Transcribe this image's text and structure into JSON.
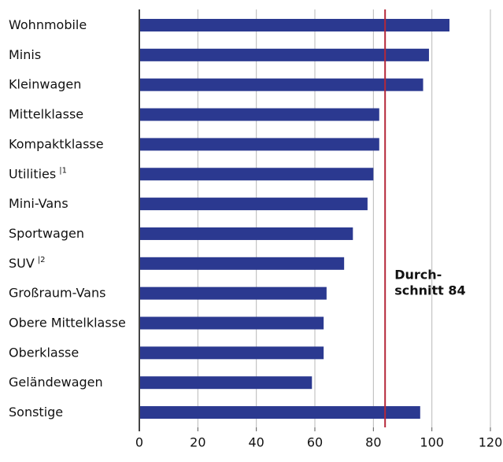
{
  "chart_data": {
    "type": "bar",
    "orientation": "horizontal",
    "categories": [
      "Wohnmobile",
      "Minis",
      "Kleinwagen",
      "Mittelklasse",
      "Kompaktklasse",
      "Utilities",
      "Mini-Vans",
      "Sportwagen",
      "SUV",
      "Großraum-Vans",
      "Obere Mittelklasse",
      "Oberklasse",
      "Geländewagen",
      "Sonstige"
    ],
    "footnotes": [
      null,
      null,
      null,
      null,
      null,
      "|1",
      null,
      null,
      "|2",
      null,
      null,
      null,
      null,
      null
    ],
    "values": [
      106,
      99,
      97,
      82,
      82,
      80,
      78,
      73,
      70,
      64,
      63,
      63,
      59,
      96
    ],
    "color": "#2b3990",
    "xlim": [
      0,
      120
    ],
    "xticks": [
      0,
      20,
      40,
      60,
      80,
      100,
      120
    ],
    "grid": true,
    "reference_line": {
      "value": 84,
      "color": "#b5283a",
      "label": [
        "Durch-",
        "schnitt 84"
      ]
    }
  }
}
